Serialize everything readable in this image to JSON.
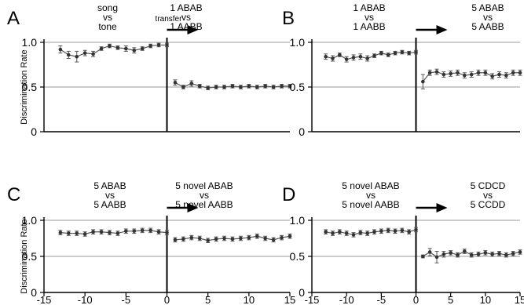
{
  "chart_data": [
    {
      "type": "line",
      "panel": "A",
      "left_condition": [
        "song",
        "vs",
        "tone"
      ],
      "transfer_label": "transfer",
      "right_condition": [
        "1 ABAB",
        "vs",
        "1 AABB"
      ],
      "ylabel": "Discrimination Rate",
      "ylim": [
        0,
        1
      ],
      "yticks": [
        "0",
        "0.5",
        "1.0"
      ],
      "xlim": [
        -15,
        15
      ],
      "xticks": [],
      "reference_line": 0.5,
      "x": [
        -13,
        -12,
        -11,
        -10,
        -9,
        -8,
        -7,
        -6,
        -5,
        -4,
        -3,
        -2,
        -1,
        0,
        1,
        2,
        3,
        4,
        5,
        6,
        7,
        8,
        9,
        10,
        11,
        12,
        13,
        14,
        15
      ],
      "y": [
        0.92,
        0.86,
        0.84,
        0.88,
        0.87,
        0.93,
        0.96,
        0.94,
        0.93,
        0.91,
        0.93,
        0.96,
        0.97,
        0.97,
        0.55,
        0.5,
        0.54,
        0.51,
        0.49,
        0.5,
        0.5,
        0.51,
        0.5,
        0.51,
        0.5,
        0.51,
        0.5,
        0.51,
        0.51
      ],
      "err": [
        0.04,
        0.04,
        0.06,
        0.03,
        0.03,
        0.02,
        0.02,
        0.02,
        0.03,
        0.03,
        0.02,
        0.02,
        0.02,
        0.02,
        0.03,
        0.02,
        0.03,
        0.02,
        0.02,
        0.02,
        0.02,
        0.02,
        0.02,
        0.02,
        0.02,
        0.02,
        0.02,
        0.02,
        0.02
      ]
    },
    {
      "type": "line",
      "panel": "B",
      "left_condition": [
        "1 ABAB",
        "vs",
        "1 AABB"
      ],
      "transfer_label": "",
      "right_condition": [
        "5 ABAB",
        "vs",
        "5 AABB"
      ],
      "ylabel": "",
      "ylim": [
        0,
        1
      ],
      "yticks": [
        "0",
        "0.5",
        "1.0"
      ],
      "xlim": [
        -15,
        15
      ],
      "xticks": [],
      "reference_line": 0.5,
      "x": [
        -13,
        -12,
        -11,
        -10,
        -9,
        -8,
        -7,
        -6,
        -5,
        -4,
        -3,
        -2,
        -1,
        0,
        1,
        2,
        3,
        4,
        5,
        6,
        7,
        8,
        9,
        10,
        11,
        12,
        13,
        14,
        15
      ],
      "y": [
        0.84,
        0.82,
        0.86,
        0.81,
        0.83,
        0.84,
        0.82,
        0.85,
        0.88,
        0.86,
        0.88,
        0.89,
        0.88,
        0.89,
        0.56,
        0.66,
        0.67,
        0.64,
        0.65,
        0.66,
        0.63,
        0.64,
        0.66,
        0.66,
        0.62,
        0.64,
        0.63,
        0.66,
        0.66
      ],
      "err": [
        0.03,
        0.03,
        0.02,
        0.03,
        0.03,
        0.03,
        0.03,
        0.02,
        0.02,
        0.02,
        0.02,
        0.02,
        0.02,
        0.02,
        0.08,
        0.03,
        0.03,
        0.03,
        0.03,
        0.03,
        0.03,
        0.03,
        0.03,
        0.03,
        0.03,
        0.03,
        0.03,
        0.03,
        0.03
      ]
    },
    {
      "type": "line",
      "panel": "C",
      "left_condition": [
        "5 ABAB",
        "vs",
        "5 AABB"
      ],
      "transfer_label": "",
      "right_condition": [
        "5 novel ABAB",
        "vs",
        "5 novel AABB"
      ],
      "ylabel": "Discrimination Rate",
      "ylim": [
        0,
        1
      ],
      "yticks": [
        "0",
        "0.5",
        "1.0"
      ],
      "xlim": [
        -15,
        15
      ],
      "xticks": [
        "-15",
        "-10",
        "-5",
        "0",
        "5",
        "10",
        "15"
      ],
      "reference_line": 0.5,
      "x": [
        -13,
        -12,
        -11,
        -10,
        -9,
        -8,
        -7,
        -6,
        -5,
        -4,
        -3,
        -2,
        -1,
        0,
        1,
        2,
        3,
        4,
        5,
        6,
        7,
        8,
        9,
        10,
        11,
        12,
        13,
        14,
        15
      ],
      "y": [
        0.83,
        0.82,
        0.82,
        0.81,
        0.84,
        0.84,
        0.83,
        0.82,
        0.85,
        0.85,
        0.86,
        0.86,
        0.84,
        0.83,
        0.73,
        0.74,
        0.76,
        0.75,
        0.72,
        0.74,
        0.75,
        0.74,
        0.75,
        0.76,
        0.78,
        0.75,
        0.73,
        0.76,
        0.78
      ],
      "err": [
        0.03,
        0.03,
        0.03,
        0.03,
        0.03,
        0.03,
        0.03,
        0.03,
        0.03,
        0.03,
        0.03,
        0.03,
        0.03,
        0.03,
        0.03,
        0.03,
        0.03,
        0.03,
        0.03,
        0.03,
        0.03,
        0.03,
        0.03,
        0.03,
        0.03,
        0.03,
        0.03,
        0.03,
        0.03
      ]
    },
    {
      "type": "line",
      "panel": "D",
      "left_condition": [
        "5 novel ABAB",
        "vs",
        "5 novel AABB"
      ],
      "transfer_label": "",
      "right_condition": [
        "5 CDCD",
        "vs",
        "5 CCDD"
      ],
      "ylabel": "",
      "ylim": [
        0,
        1
      ],
      "yticks": [
        "0",
        "0.5",
        "1.0"
      ],
      "xlim": [
        -15,
        15
      ],
      "xticks": [
        "-15",
        "-10",
        "-5",
        "0",
        "5",
        "10",
        "15"
      ],
      "reference_line": 0.5,
      "x": [
        -13,
        -12,
        -11,
        -10,
        -9,
        -8,
        -7,
        -6,
        -5,
        -4,
        -3,
        -2,
        -1,
        0,
        1,
        2,
        3,
        4,
        5,
        6,
        7,
        8,
        9,
        10,
        11,
        12,
        13,
        14,
        15
      ],
      "y": [
        0.84,
        0.82,
        0.84,
        0.82,
        0.8,
        0.83,
        0.82,
        0.84,
        0.85,
        0.86,
        0.85,
        0.86,
        0.84,
        0.87,
        0.5,
        0.56,
        0.49,
        0.53,
        0.55,
        0.52,
        0.57,
        0.52,
        0.53,
        0.55,
        0.53,
        0.54,
        0.52,
        0.54,
        0.56
      ],
      "err": [
        0.03,
        0.03,
        0.03,
        0.03,
        0.03,
        0.03,
        0.03,
        0.03,
        0.03,
        0.03,
        0.03,
        0.03,
        0.03,
        0.03,
        0.02,
        0.05,
        0.08,
        0.04,
        0.03,
        0.03,
        0.03,
        0.03,
        0.03,
        0.03,
        0.03,
        0.03,
        0.03,
        0.03,
        0.03
      ]
    }
  ]
}
